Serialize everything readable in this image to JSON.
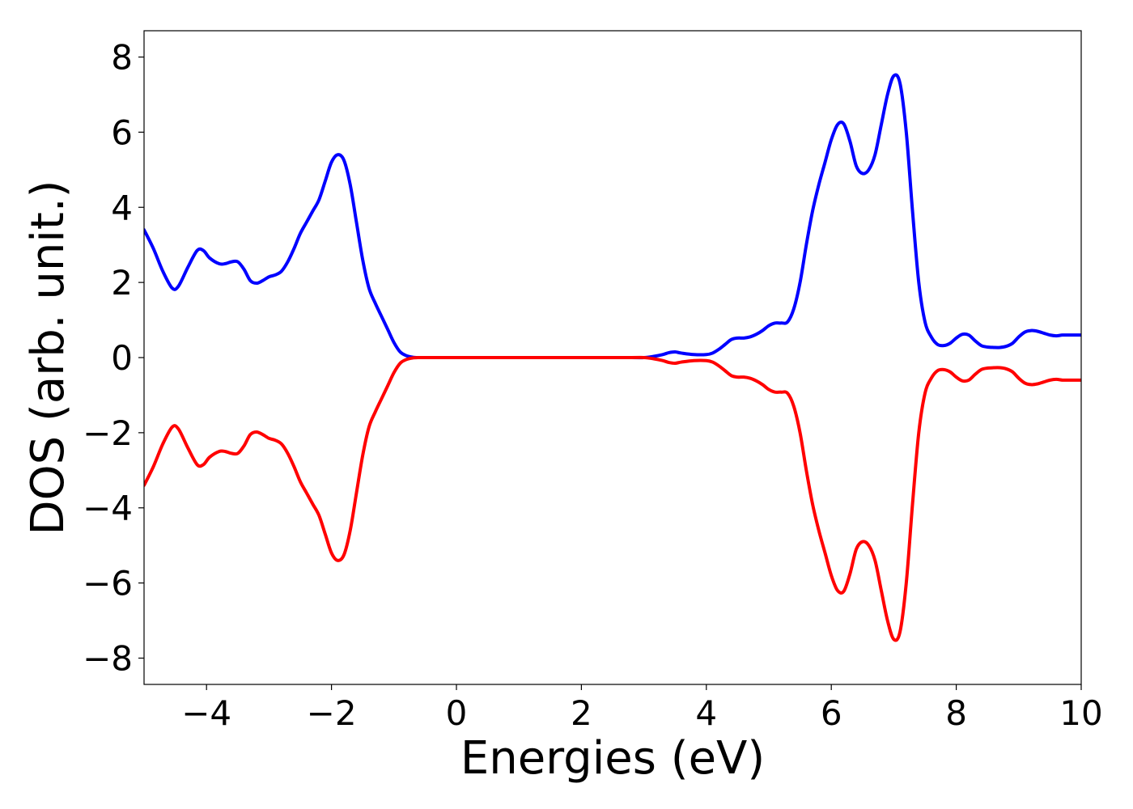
{
  "chart_data": {
    "type": "line",
    "title": "",
    "xlabel": "Energies (eV)",
    "ylabel": "DOS (arb. unit.)",
    "xlim": [
      -5,
      10
    ],
    "ylim": [
      -8.7,
      8.7
    ],
    "grid": false,
    "legend": "none",
    "xticks": [
      -4,
      -2,
      0,
      2,
      4,
      6,
      8,
      10
    ],
    "xtick_labels": [
      "−4",
      "−2",
      "0",
      "2",
      "4",
      "6",
      "8",
      "10"
    ],
    "yticks": [
      -8,
      -6,
      -4,
      -2,
      0,
      2,
      4,
      6,
      8
    ],
    "ytick_labels": [
      "−8",
      "−6",
      "−4",
      "−2",
      "0",
      "2",
      "4",
      "6",
      "8"
    ],
    "series": [
      {
        "color": "#0000ff",
        "x": [
          -5.0,
          -4.85,
          -4.7,
          -4.55,
          -4.45,
          -4.3,
          -4.15,
          -4.05,
          -3.95,
          -3.8,
          -3.7,
          -3.6,
          -3.5,
          -3.4,
          -3.3,
          -3.2,
          -3.1,
          -3.0,
          -2.9,
          -2.8,
          -2.7,
          -2.6,
          -2.5,
          -2.4,
          -2.3,
          -2.2,
          -2.1,
          -2.0,
          -1.9,
          -1.8,
          -1.7,
          -1.6,
          -1.5,
          -1.4,
          -1.3,
          -1.2,
          -1.1,
          -1.0,
          -0.9,
          -0.8,
          -0.7,
          -0.6,
          -0.5,
          -0.4,
          0.0,
          1.0,
          2.0,
          2.8,
          3.0,
          3.15,
          3.3,
          3.4,
          3.5,
          3.6,
          3.8,
          4.0,
          4.1,
          4.2,
          4.3,
          4.4,
          4.5,
          4.6,
          4.7,
          4.8,
          4.9,
          5.0,
          5.1,
          5.2,
          5.3,
          5.4,
          5.5,
          5.6,
          5.7,
          5.8,
          5.9,
          6.0,
          6.1,
          6.2,
          6.3,
          6.4,
          6.5,
          6.6,
          6.7,
          6.8,
          6.9,
          7.0,
          7.1,
          7.2,
          7.3,
          7.4,
          7.5,
          7.6,
          7.7,
          7.8,
          7.9,
          8.0,
          8.1,
          8.2,
          8.3,
          8.4,
          8.5,
          8.6,
          8.7,
          8.8,
          8.9,
          9.0,
          9.1,
          9.2,
          9.3,
          9.4,
          9.5,
          9.6,
          9.7,
          9.8,
          9.9,
          10.0
        ],
        "y": [
          3.4,
          2.9,
          2.3,
          1.85,
          1.9,
          2.4,
          2.85,
          2.85,
          2.65,
          2.5,
          2.5,
          2.55,
          2.55,
          2.35,
          2.05,
          1.98,
          2.05,
          2.15,
          2.2,
          2.3,
          2.55,
          2.9,
          3.3,
          3.6,
          3.9,
          4.2,
          4.7,
          5.2,
          5.4,
          5.25,
          4.6,
          3.6,
          2.6,
          1.85,
          1.45,
          1.1,
          0.75,
          0.4,
          0.15,
          0.05,
          0.01,
          0.0,
          0.0,
          0.0,
          0.0,
          0.0,
          0.0,
          0.0,
          0.0,
          0.03,
          0.08,
          0.13,
          0.15,
          0.12,
          0.08,
          0.08,
          0.12,
          0.22,
          0.35,
          0.48,
          0.52,
          0.52,
          0.55,
          0.62,
          0.72,
          0.85,
          0.92,
          0.92,
          0.95,
          1.3,
          2.0,
          3.0,
          3.9,
          4.6,
          5.2,
          5.8,
          6.2,
          6.22,
          5.75,
          5.1,
          4.9,
          5.0,
          5.4,
          6.2,
          7.0,
          7.5,
          7.3,
          6.0,
          3.9,
          2.0,
          0.95,
          0.55,
          0.35,
          0.32,
          0.38,
          0.52,
          0.62,
          0.6,
          0.45,
          0.32,
          0.28,
          0.27,
          0.27,
          0.3,
          0.38,
          0.55,
          0.68,
          0.72,
          0.7,
          0.65,
          0.6,
          0.58,
          0.6,
          0.6,
          0.6,
          0.6
        ]
      },
      {
        "color": "#ff0000",
        "x": [
          -5.0,
          -4.85,
          -4.7,
          -4.55,
          -4.45,
          -4.3,
          -4.15,
          -4.05,
          -3.95,
          -3.8,
          -3.7,
          -3.6,
          -3.5,
          -3.4,
          -3.3,
          -3.2,
          -3.1,
          -3.0,
          -2.9,
          -2.8,
          -2.7,
          -2.6,
          -2.5,
          -2.4,
          -2.3,
          -2.2,
          -2.1,
          -2.0,
          -1.9,
          -1.8,
          -1.7,
          -1.6,
          -1.5,
          -1.4,
          -1.3,
          -1.2,
          -1.1,
          -1.0,
          -0.9,
          -0.8,
          -0.7,
          -0.6,
          -0.5,
          -0.4,
          0.0,
          1.0,
          2.0,
          2.8,
          3.0,
          3.15,
          3.3,
          3.4,
          3.5,
          3.6,
          3.8,
          4.0,
          4.1,
          4.2,
          4.3,
          4.4,
          4.5,
          4.6,
          4.7,
          4.8,
          4.9,
          5.0,
          5.1,
          5.2,
          5.3,
          5.4,
          5.5,
          5.6,
          5.7,
          5.8,
          5.9,
          6.0,
          6.1,
          6.2,
          6.3,
          6.4,
          6.5,
          6.6,
          6.7,
          6.8,
          6.9,
          7.0,
          7.1,
          7.2,
          7.3,
          7.4,
          7.5,
          7.6,
          7.7,
          7.8,
          7.9,
          8.0,
          8.1,
          8.2,
          8.3,
          8.4,
          8.5,
          8.6,
          8.7,
          8.8,
          8.9,
          9.0,
          9.1,
          9.2,
          9.3,
          9.4,
          9.5,
          9.6,
          9.7,
          9.8,
          9.9,
          10.0
        ],
        "y": [
          -3.4,
          -2.9,
          -2.3,
          -1.85,
          -1.9,
          -2.4,
          -2.85,
          -2.85,
          -2.65,
          -2.5,
          -2.5,
          -2.55,
          -2.55,
          -2.35,
          -2.05,
          -1.98,
          -2.05,
          -2.15,
          -2.2,
          -2.3,
          -2.55,
          -2.9,
          -3.3,
          -3.6,
          -3.9,
          -4.2,
          -4.7,
          -5.2,
          -5.4,
          -5.25,
          -4.6,
          -3.6,
          -2.6,
          -1.85,
          -1.45,
          -1.1,
          -0.75,
          -0.4,
          -0.15,
          -0.05,
          -0.01,
          0.0,
          0.0,
          0.0,
          0.0,
          0.0,
          0.0,
          0.0,
          0.0,
          -0.03,
          -0.08,
          -0.13,
          -0.15,
          -0.12,
          -0.08,
          -0.08,
          -0.12,
          -0.22,
          -0.35,
          -0.48,
          -0.52,
          -0.52,
          -0.55,
          -0.62,
          -0.72,
          -0.85,
          -0.92,
          -0.92,
          -0.95,
          -1.3,
          -2.0,
          -3.0,
          -3.9,
          -4.6,
          -5.2,
          -5.8,
          -6.2,
          -6.22,
          -5.75,
          -5.1,
          -4.9,
          -5.0,
          -5.4,
          -6.2,
          -7.0,
          -7.5,
          -7.3,
          -6.0,
          -3.9,
          -2.0,
          -0.95,
          -0.55,
          -0.35,
          -0.32,
          -0.38,
          -0.52,
          -0.62,
          -0.6,
          -0.45,
          -0.32,
          -0.28,
          -0.27,
          -0.27,
          -0.3,
          -0.38,
          -0.55,
          -0.68,
          -0.72,
          -0.7,
          -0.65,
          -0.6,
          -0.58,
          -0.6,
          -0.6,
          -0.6,
          -0.6
        ]
      }
    ]
  }
}
